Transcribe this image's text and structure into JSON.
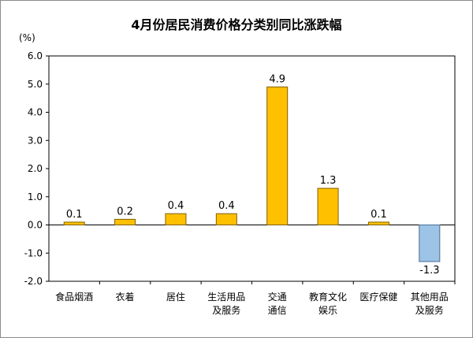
{
  "chart_data": {
    "type": "bar",
    "title": "4月份居民消费价格分类别同比涨跌幅",
    "unit_label": "(%)",
    "categories": [
      [
        "食品烟酒"
      ],
      [
        "衣着"
      ],
      [
        "居住"
      ],
      [
        "生活用品",
        "及服务"
      ],
      [
        "交通",
        "通信"
      ],
      [
        "教育文化",
        "娱乐"
      ],
      [
        "医疗保健"
      ],
      [
        "其他用品",
        "及服务"
      ]
    ],
    "values": [
      0.1,
      0.2,
      0.4,
      0.4,
      4.9,
      1.3,
      0.1,
      -1.3
    ],
    "data_labels": [
      "0.1",
      "0.2",
      "0.4",
      "0.4",
      "4.9",
      "1.3",
      "0.1",
      "-1.3"
    ],
    "ylim": [
      -2.0,
      6.0
    ],
    "yticks": [
      6.0,
      5.0,
      4.0,
      3.0,
      2.0,
      1.0,
      0.0,
      -1.0,
      -2.0
    ],
    "ytick_labels": [
      "6.0",
      "5.0",
      "4.0",
      "3.0",
      "2.0",
      "1.0",
      "0.0",
      "-1.0",
      "-2.0"
    ],
    "grid": false,
    "colors": {
      "positive_fill": "#FFC000",
      "positive_stroke": "#7f6000",
      "negative_fill": "#9DC3E6",
      "negative_stroke": "#4a6f95",
      "axis": "#000000"
    }
  }
}
